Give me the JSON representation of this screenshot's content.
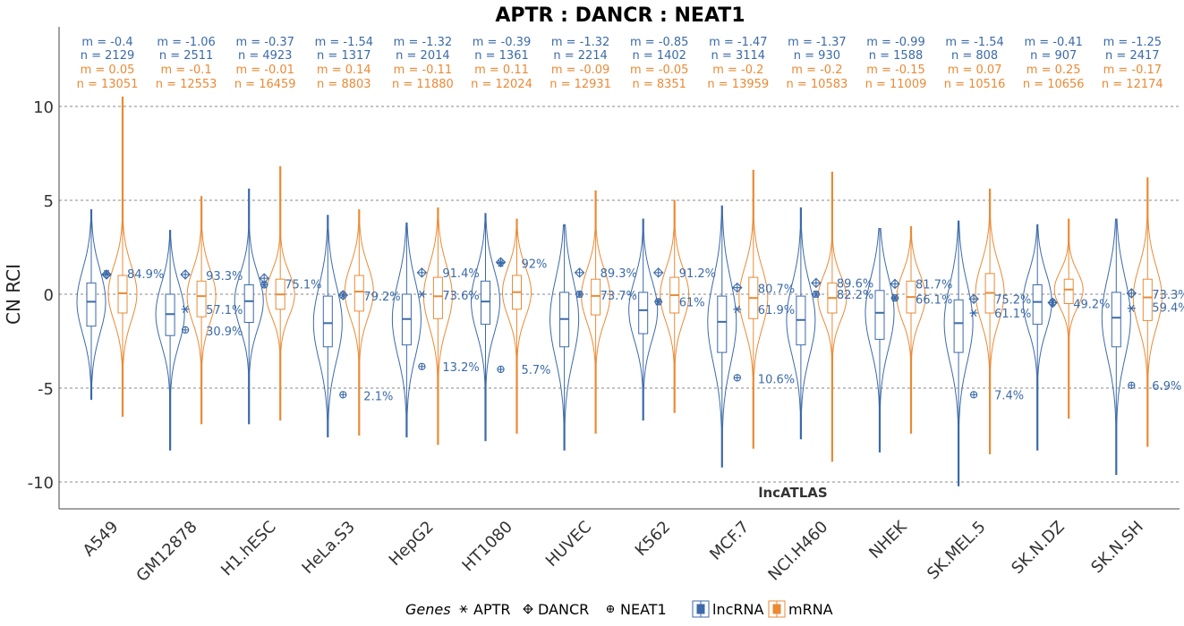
{
  "chart_data": {
    "type": "violin",
    "title": "APTR : DANCR : NEAT1",
    "ylabel": "CN RCI",
    "xlabel": "",
    "ylim": [
      -11.5,
      13.0
    ],
    "yticks": [
      10,
      5,
      0,
      -5,
      -10
    ],
    "grid": "horizontal dashed",
    "annotation": "lncATLAS",
    "legend": {
      "position": "bottom",
      "title": "Genes",
      "genes": [
        "APTR",
        "DANCR",
        "NEAT1"
      ],
      "series": [
        "lncRNA",
        "mRNA"
      ]
    },
    "colors": {
      "lncRNA": "#3b6aa8",
      "mRNA": "#ea8a35"
    },
    "categories": [
      "A549",
      "GM12878",
      "H1.hESC",
      "HeLa.S3",
      "HepG2",
      "HT1080",
      "HUVEC",
      "K562",
      "MCF.7",
      "NCI.H460",
      "NHEK",
      "SK.MEL.5",
      "SK.N.DZ",
      "SK.N.SH"
    ],
    "lncRNA": {
      "m": [
        "m = -0.4",
        "m = -1.06",
        "m = -0.37",
        "m = -1.54",
        "m = -1.32",
        "m = -0.39",
        "m = -1.32",
        "m = -0.85",
        "m = -1.47",
        "m = -1.37",
        "m = -0.99",
        "m = -1.54",
        "m = -0.41",
        "m = -1.25"
      ],
      "n": [
        "n = 2129",
        "n = 2511",
        "n = 4923",
        "n = 1317",
        "n = 2014",
        "n = 1361",
        "n = 2214",
        "n = 1402",
        "n = 3114",
        "n = 930",
        "n = 1588",
        "n = 808",
        "n = 907",
        "n = 2417"
      ],
      "median": [
        -0.4,
        -1.06,
        -0.37,
        -1.54,
        -1.32,
        -0.39,
        -1.32,
        -0.85,
        -1.47,
        -1.37,
        -0.99,
        -1.54,
        -0.41,
        -1.25
      ],
      "q1": [
        -1.7,
        -2.2,
        -1.5,
        -2.8,
        -2.7,
        -1.6,
        -2.8,
        -2.1,
        -3.1,
        -2.7,
        -2.4,
        -3.1,
        -1.6,
        -2.8
      ],
      "q3": [
        0.6,
        0.0,
        0.5,
        -0.1,
        0.0,
        0.7,
        0.1,
        0.1,
        -0.1,
        -0.1,
        0.2,
        -0.3,
        0.5,
        0.1
      ],
      "min": [
        -5.6,
        -8.3,
        -6.9,
        -7.6,
        -7.6,
        -7.8,
        -8.3,
        -6.7,
        -9.2,
        -7.7,
        -8.4,
        -10.2,
        -8.3,
        -9.6
      ],
      "max": [
        4.5,
        3.4,
        5.6,
        4.2,
        3.8,
        4.3,
        3.7,
        4.0,
        4.7,
        4.6,
        3.5,
        3.9,
        3.7,
        4.0
      ]
    },
    "mRNA": {
      "m": [
        "m = 0.05",
        "m = -0.1",
        "m = -0.01",
        "m = 0.14",
        "m = -0.11",
        "m = 0.11",
        "m = -0.09",
        "m = -0.05",
        "m = -0.2",
        "m = -0.2",
        "m = -0.15",
        "m = 0.07",
        "m = 0.25",
        "m = -0.17"
      ],
      "n": [
        "n = 13051",
        "n = 12553",
        "n = 16459",
        "n = 8803",
        "n = 11880",
        "n = 12024",
        "n = 12931",
        "n = 8351",
        "n = 13959",
        "n = 10583",
        "n = 11009",
        "n = 10516",
        "n = 10656",
        "n = 12174"
      ],
      "median": [
        0.05,
        -0.1,
        -0.01,
        0.14,
        -0.11,
        0.11,
        -0.09,
        -0.05,
        -0.2,
        -0.2,
        -0.15,
        0.07,
        0.25,
        -0.17
      ],
      "q1": [
        -1.0,
        -1.2,
        -0.8,
        -0.9,
        -1.3,
        -0.8,
        -1.1,
        -1.0,
        -1.3,
        -1.0,
        -1.0,
        -1.0,
        -0.5,
        -1.4
      ],
      "q3": [
        1.0,
        0.7,
        0.8,
        1.0,
        0.9,
        1.0,
        0.8,
        0.9,
        0.9,
        0.6,
        0.7,
        1.1,
        0.8,
        0.8
      ],
      "min": [
        -6.5,
        -6.9,
        -6.7,
        -7.5,
        -8.0,
        -7.4,
        -7.4,
        -6.3,
        -8.2,
        -8.9,
        -7.4,
        -8.5,
        -6.6,
        -8.1
      ],
      "max": [
        10.5,
        5.2,
        6.8,
        4.5,
        4.6,
        4.0,
        5.5,
        5.0,
        6.6,
        6.5,
        3.6,
        5.6,
        4.0,
        6.2
      ]
    },
    "gene_points": {
      "APTR": {
        "values": [
          1.1,
          -0.8,
          0.5,
          -0.05,
          0.0,
          1.65,
          0.0,
          -0.4,
          -0.8,
          0.0,
          -0.2,
          -1.0,
          -0.45,
          -0.75
        ],
        "pct": [
          "84.9%",
          "57.1%",
          "75.1%",
          "79.2%",
          "73.6%",
          "92%",
          "73.7%",
          "61%",
          "61.9%",
          "82.2%",
          "66.1%",
          "61.1%",
          "49.2%",
          "59.4%"
        ]
      },
      "DANCR": {
        "values": [
          1.05,
          1.05,
          0.85,
          -0.05,
          1.15,
          1.7,
          1.15,
          1.15,
          0.35,
          0.6,
          0.55,
          -0.25,
          -0.45,
          0.05
        ],
        "pct": [
          "84.9%",
          "93.3%",
          "75.1%",
          "79.2%",
          "91.4%",
          "92%",
          "89.3%",
          "91.2%",
          "80.7%",
          "89.6%",
          "81.7%",
          "75.2%",
          "49.2%",
          "73.3%"
        ]
      },
      "NEAT1": {
        "values": [
          1.05,
          -1.9,
          0.5,
          -5.35,
          -3.85,
          -4.0,
          0.0,
          -0.4,
          -4.45,
          0.0,
          -0.2,
          -5.35,
          -0.45,
          -4.85
        ],
        "pct": [
          "84.9%",
          "30.9%",
          "75.1%",
          "2.1%",
          "13.2%",
          "5.7%",
          "73.7%",
          "61%",
          "10.6%",
          "82.2%",
          "66.1%",
          "7.4%",
          "49.2%",
          "6.9%"
        ]
      }
    },
    "point_labels": [
      {
        "category": "A549",
        "y": 1.1,
        "text": "84.9%"
      },
      {
        "category": "GM12878",
        "y": 1.0,
        "text": "93.3%"
      },
      {
        "category": "GM12878",
        "y": -0.8,
        "text": "57.1%"
      },
      {
        "category": "GM12878",
        "y": -1.95,
        "text": "30.9%"
      },
      {
        "category": "H1.hESC",
        "y": 0.55,
        "text": "75.1%"
      },
      {
        "category": "HeLa.S3",
        "y": -0.1,
        "text": "79.2%"
      },
      {
        "category": "HeLa.S3",
        "y": -5.4,
        "text": "2.1%"
      },
      {
        "category": "HepG2",
        "y": 1.15,
        "text": "91.4%"
      },
      {
        "category": "HepG2",
        "y": -0.05,
        "text": "73.6%"
      },
      {
        "category": "HepG2",
        "y": -3.85,
        "text": "13.2%"
      },
      {
        "category": "HT1080",
        "y": 1.65,
        "text": "92%"
      },
      {
        "category": "HT1080",
        "y": -4.0,
        "text": "5.7%"
      },
      {
        "category": "HUVEC",
        "y": 1.15,
        "text": "89.3%"
      },
      {
        "category": "HUVEC",
        "y": -0.05,
        "text": "73.7%"
      },
      {
        "category": "K562",
        "y": 1.15,
        "text": "91.2%"
      },
      {
        "category": "K562",
        "y": -0.4,
        "text": "61%"
      },
      {
        "category": "MCF.7",
        "y": 0.3,
        "text": "80.7%"
      },
      {
        "category": "MCF.7",
        "y": -0.8,
        "text": "61.9%"
      },
      {
        "category": "MCF.7",
        "y": -4.5,
        "text": "10.6%"
      },
      {
        "category": "NCI.H460",
        "y": 0.6,
        "text": "89.6%"
      },
      {
        "category": "NCI.H460",
        "y": 0.0,
        "text": "82.2%"
      },
      {
        "category": "NHEK",
        "y": 0.55,
        "text": "81.7%"
      },
      {
        "category": "NHEK",
        "y": -0.25,
        "text": "66.1%"
      },
      {
        "category": "SK.MEL.5",
        "y": -0.25,
        "text": "75.2%"
      },
      {
        "category": "SK.MEL.5",
        "y": -1.0,
        "text": "61.1%"
      },
      {
        "category": "SK.MEL.5",
        "y": -5.35,
        "text": "7.4%"
      },
      {
        "category": "SK.N.DZ",
        "y": -0.5,
        "text": "49.2%"
      },
      {
        "category": "SK.N.SH",
        "y": 0.0,
        "text": "73.3%"
      },
      {
        "category": "SK.N.SH",
        "y": -0.7,
        "text": "59.4%"
      },
      {
        "category": "SK.N.SH",
        "y": -4.85,
        "text": "6.9%"
      }
    ]
  }
}
